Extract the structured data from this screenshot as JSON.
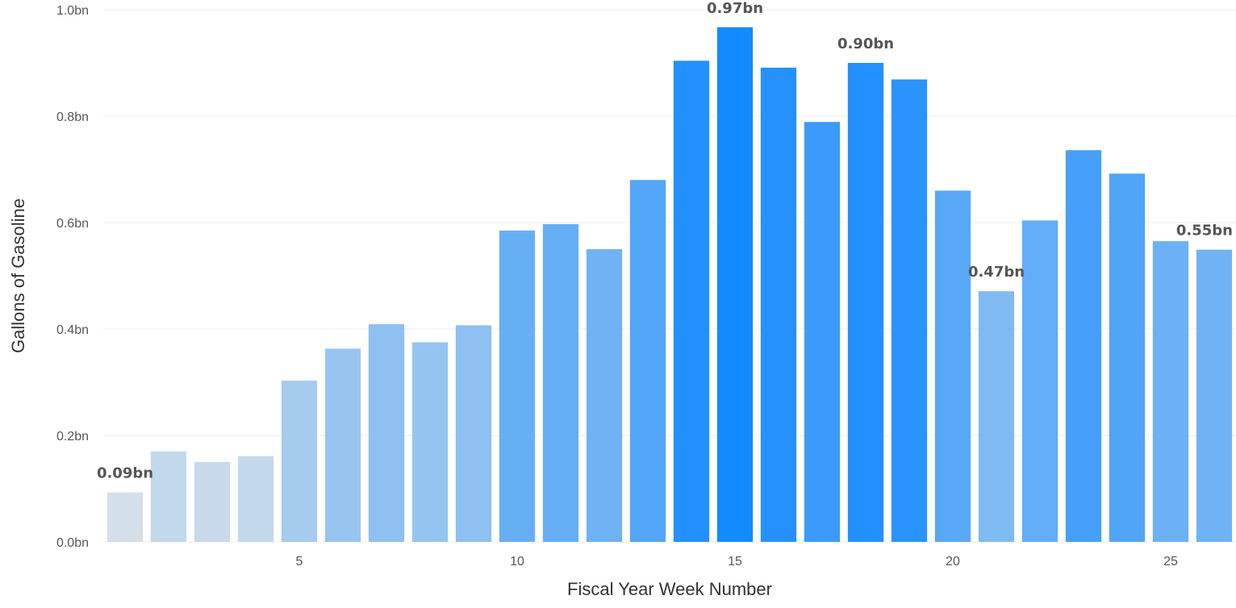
{
  "chart_data": {
    "type": "bar",
    "title": "",
    "xlabel": "Fiscal Year Week Number",
    "ylabel": "Gallons of Gasoline",
    "categories": [
      1,
      2,
      3,
      4,
      5,
      6,
      7,
      8,
      9,
      10,
      11,
      12,
      13,
      14,
      15,
      16,
      17,
      18,
      19,
      20,
      21,
      22,
      23,
      24,
      25,
      26
    ],
    "values": [
      0.093,
      0.17,
      0.15,
      0.161,
      0.303,
      0.363,
      0.409,
      0.375,
      0.407,
      0.585,
      0.597,
      0.55,
      0.68,
      0.904,
      0.967,
      0.891,
      0.789,
      0.9,
      0.869,
      0.66,
      0.471,
      0.604,
      0.736,
      0.692,
      0.565,
      0.549
    ],
    "ylim": [
      0,
      1.0
    ],
    "y_ticks": [
      {
        "value": 0.0,
        "label": "0.0bn"
      },
      {
        "value": 0.2,
        "label": "0.2bn"
      },
      {
        "value": 0.4,
        "label": "0.4bn"
      },
      {
        "value": 0.6,
        "label": "0.6bn"
      },
      {
        "value": 0.8,
        "label": "0.8bn"
      },
      {
        "value": 1.0,
        "label": "1.0bn"
      }
    ],
    "x_ticks": [
      {
        "value": 5,
        "label": "5"
      },
      {
        "value": 10,
        "label": "10"
      },
      {
        "value": 15,
        "label": "15"
      },
      {
        "value": 20,
        "label": "20"
      },
      {
        "value": 25,
        "label": "25"
      }
    ],
    "data_labels": [
      {
        "category": 1,
        "label": "0.09bn"
      },
      {
        "category": 15,
        "label": "0.97bn"
      },
      {
        "category": 18,
        "label": "0.90bn"
      },
      {
        "category": 21,
        "label": "0.47bn"
      },
      {
        "category": 26,
        "label": "0.55bn"
      }
    ],
    "color_scale": {
      "low": "#d3dfe9",
      "high": "#148aff"
    },
    "grid": true,
    "legend": "none"
  }
}
